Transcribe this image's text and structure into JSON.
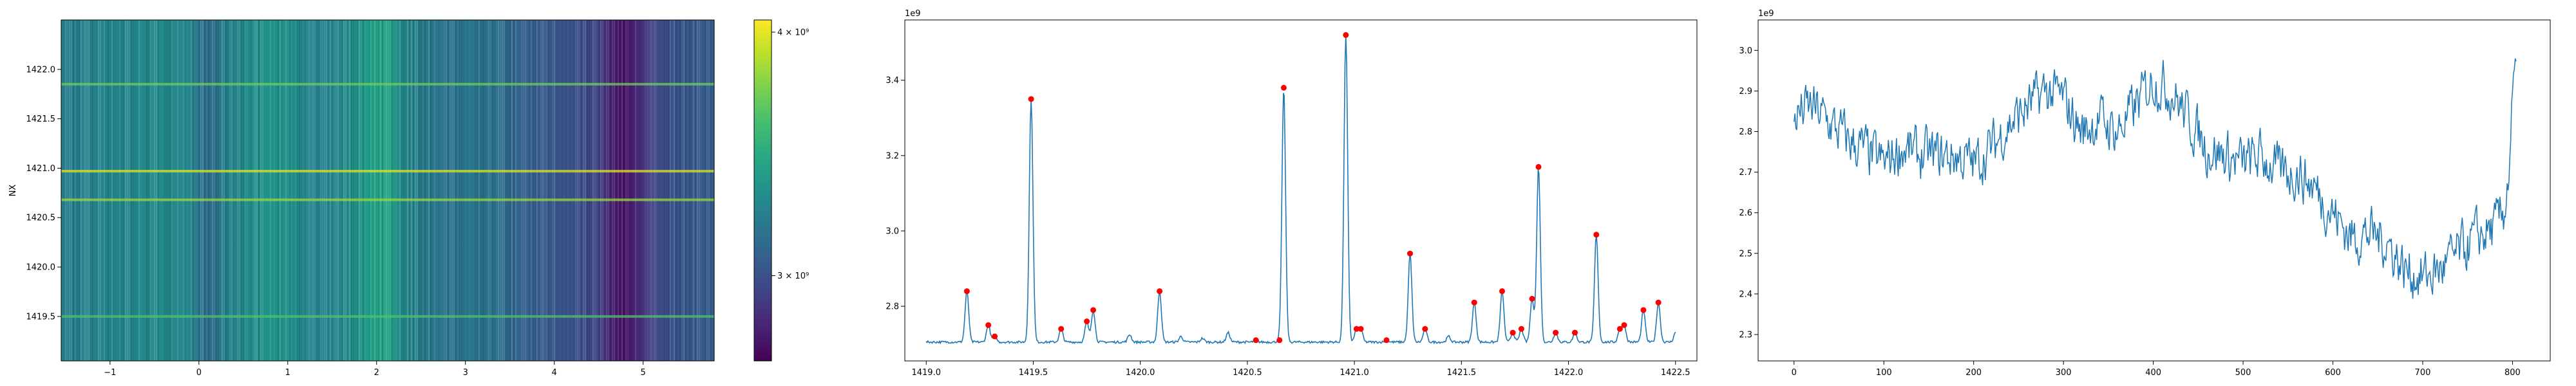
{
  "chart_data": [
    {
      "type": "heatmap",
      "ylabel": "NX",
      "xlim": [
        -1.55,
        5.8
      ],
      "ylim": [
        1419.05,
        1422.5
      ],
      "x_ticks": [
        -1,
        0,
        1,
        2,
        3,
        4,
        5
      ],
      "y_ticks": [
        1419.5,
        1420.0,
        1420.5,
        1421.0,
        1421.5,
        1422.0
      ],
      "x_tick_labels": [
        "−1",
        "0",
        "1",
        "2",
        "3",
        "4",
        "5"
      ],
      "y_tick_labels": [
        "1419.5",
        "1420.0",
        "1420.5",
        "1421.0",
        "1421.5",
        "1422.0"
      ],
      "colormap": "viridis",
      "column_profile": [
        [
          -1.55,
          0.42
        ],
        [
          -1.2,
          0.45
        ],
        [
          -0.8,
          0.47
        ],
        [
          -0.4,
          0.48
        ],
        [
          -0.1,
          0.46
        ],
        [
          0.05,
          0.37
        ],
        [
          0.15,
          0.36
        ],
        [
          0.3,
          0.44
        ],
        [
          0.6,
          0.5
        ],
        [
          0.9,
          0.52
        ],
        [
          1.1,
          0.49
        ],
        [
          1.3,
          0.44
        ],
        [
          1.5,
          0.45
        ],
        [
          1.7,
          0.5
        ],
        [
          1.95,
          0.56
        ],
        [
          2.1,
          0.58
        ],
        [
          2.25,
          0.5
        ],
        [
          2.5,
          0.42
        ],
        [
          2.8,
          0.38
        ],
        [
          3.1,
          0.4
        ],
        [
          3.4,
          0.36
        ],
        [
          3.7,
          0.3
        ],
        [
          4.0,
          0.27
        ],
        [
          4.3,
          0.24
        ],
        [
          4.5,
          0.2
        ],
        [
          4.65,
          0.08
        ],
        [
          4.8,
          0.05
        ],
        [
          4.95,
          0.12
        ],
        [
          5.1,
          0.2
        ],
        [
          5.35,
          0.26
        ],
        [
          5.6,
          0.28
        ],
        [
          5.8,
          0.3
        ]
      ],
      "bright_rows": [
        {
          "y": 1419.5,
          "value": 0.72
        },
        {
          "y": 1420.68,
          "value": 0.85
        },
        {
          "y": 1420.97,
          "value": 0.95
        },
        {
          "y": 1421.85,
          "value": 0.78
        }
      ],
      "colorbar": {
        "tick_labels": [
          "4 × 10⁹",
          "3 × 10⁹"
        ],
        "tick_values": [
          4000000000,
          3000000000
        ],
        "range": [
          2650000000,
          4050000000
        ]
      }
    },
    {
      "type": "line",
      "xlim": [
        1418.9,
        1422.6
      ],
      "ylim": [
        2.655,
        3.56
      ],
      "x_ticks": [
        1419.0,
        1419.5,
        1420.0,
        1420.5,
        1421.0,
        1421.5,
        1422.0,
        1422.5
      ],
      "y_ticks": [
        2.8,
        3.0,
        3.2,
        3.4
      ],
      "x_tick_labels": [
        "1419.0",
        "1419.5",
        "1420.0",
        "1420.5",
        "1421.0",
        "1421.5",
        "1422.0",
        "1422.5"
      ],
      "y_tick_labels": [
        "2.8",
        "3.0",
        "3.2",
        "3.4"
      ],
      "y_offset_label": "1e9",
      "line_color": "#1f77b4",
      "marker_color": "#ff0000",
      "baseline": 2.705,
      "peaks": [
        {
          "x": 1419.19,
          "y": 2.84
        },
        {
          "x": 1419.29,
          "y": 2.75
        },
        {
          "x": 1419.32,
          "y": 2.72
        },
        {
          "x": 1419.49,
          "y": 3.35
        },
        {
          "x": 1419.63,
          "y": 2.74
        },
        {
          "x": 1419.75,
          "y": 2.76
        },
        {
          "x": 1419.78,
          "y": 2.79
        },
        {
          "x": 1420.09,
          "y": 2.84
        },
        {
          "x": 1420.54,
          "y": 2.71
        },
        {
          "x": 1420.65,
          "y": 2.71
        },
        {
          "x": 1420.67,
          "y": 3.38
        },
        {
          "x": 1420.96,
          "y": 3.52
        },
        {
          "x": 1421.01,
          "y": 2.74
        },
        {
          "x": 1421.03,
          "y": 2.74
        },
        {
          "x": 1421.15,
          "y": 2.71
        },
        {
          "x": 1421.26,
          "y": 2.94
        },
        {
          "x": 1421.33,
          "y": 2.74
        },
        {
          "x": 1421.56,
          "y": 2.81
        },
        {
          "x": 1421.69,
          "y": 2.84
        },
        {
          "x": 1421.74,
          "y": 2.73
        },
        {
          "x": 1421.78,
          "y": 2.74
        },
        {
          "x": 1421.83,
          "y": 2.82
        },
        {
          "x": 1421.86,
          "y": 3.17
        },
        {
          "x": 1421.94,
          "y": 2.73
        },
        {
          "x": 1422.03,
          "y": 2.73
        },
        {
          "x": 1422.13,
          "y": 2.99
        },
        {
          "x": 1422.24,
          "y": 2.74
        },
        {
          "x": 1422.26,
          "y": 2.75
        },
        {
          "x": 1422.35,
          "y": 2.79
        },
        {
          "x": 1422.42,
          "y": 2.81
        }
      ],
      "minor_bumps": [
        {
          "x": 1419.95,
          "y": 2.725
        },
        {
          "x": 1420.19,
          "y": 2.72
        },
        {
          "x": 1420.29,
          "y": 2.715
        },
        {
          "x": 1420.41,
          "y": 2.73
        },
        {
          "x": 1421.44,
          "y": 2.72
        },
        {
          "x": 1422.5,
          "y": 2.73
        }
      ]
    },
    {
      "type": "line",
      "xlim": [
        -40,
        842
      ],
      "ylim": [
        2.235,
        3.075
      ],
      "x_ticks": [
        0,
        100,
        200,
        300,
        400,
        500,
        600,
        700,
        800
      ],
      "y_ticks": [
        2.3,
        2.4,
        2.5,
        2.6,
        2.7,
        2.8,
        2.9,
        3.0
      ],
      "x_tick_labels": [
        "0",
        "100",
        "200",
        "300",
        "400",
        "500",
        "600",
        "700",
        "800"
      ],
      "y_tick_labels": [
        "2.3",
        "2.4",
        "2.5",
        "2.6",
        "2.7",
        "2.8",
        "2.9",
        "3.0"
      ],
      "y_offset_label": "1e9",
      "line_color": "#1f77b4",
      "n_points": 805,
      "trend": [
        [
          0,
          2.84
        ],
        [
          20,
          2.86
        ],
        [
          40,
          2.82
        ],
        [
          60,
          2.78
        ],
        [
          80,
          2.75
        ],
        [
          100,
          2.72
        ],
        [
          120,
          2.76
        ],
        [
          140,
          2.74
        ],
        [
          160,
          2.74
        ],
        [
          180,
          2.74
        ],
        [
          200,
          2.72
        ],
        [
          220,
          2.76
        ],
        [
          240,
          2.82
        ],
        [
          260,
          2.86
        ],
        [
          280,
          2.9
        ],
        [
          300,
          2.88
        ],
        [
          320,
          2.8
        ],
        [
          340,
          2.83
        ],
        [
          360,
          2.8
        ],
        [
          380,
          2.86
        ],
        [
          400,
          2.93
        ],
        [
          420,
          2.9
        ],
        [
          440,
          2.83
        ],
        [
          460,
          2.76
        ],
        [
          480,
          2.74
        ],
        [
          500,
          2.72
        ],
        [
          520,
          2.74
        ],
        [
          540,
          2.7
        ],
        [
          560,
          2.7
        ],
        [
          580,
          2.66
        ],
        [
          600,
          2.6
        ],
        [
          620,
          2.54
        ],
        [
          640,
          2.55
        ],
        [
          660,
          2.53
        ],
        [
          680,
          2.46
        ],
        [
          700,
          2.44
        ],
        [
          720,
          2.46
        ],
        [
          740,
          2.5
        ],
        [
          760,
          2.54
        ],
        [
          780,
          2.56
        ],
        [
          790,
          2.6
        ],
        [
          796,
          2.7
        ],
        [
          800,
          2.88
        ],
        [
          805,
          2.95
        ]
      ],
      "noise_amplitude": 0.06
    }
  ]
}
